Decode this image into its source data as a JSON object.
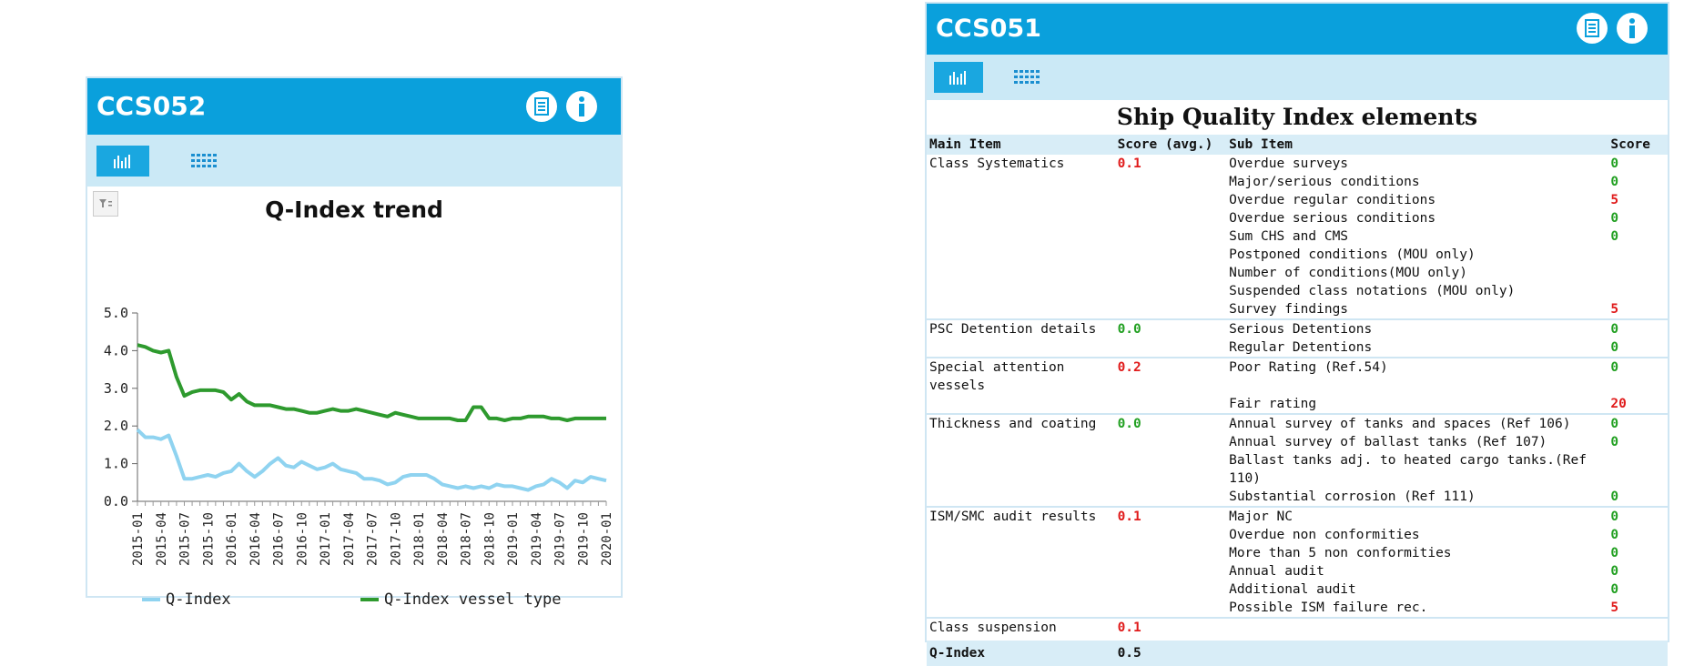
{
  "left_panel": {
    "title": "CCS052",
    "chart_title": "Q-Index trend",
    "toolbar": {
      "chart_icon": "bar-chart-icon",
      "table_icon": "grid-icon",
      "filter_icon": "filter-icon"
    },
    "header_icons": [
      "document-icon",
      "info-icon"
    ]
  },
  "chart_data": {
    "type": "line",
    "title": "Q-Index trend",
    "xlabel": "",
    "ylabel": "",
    "ylim": [
      0,
      5
    ],
    "yticks": [
      "0.0",
      "1.0",
      "2.0",
      "3.0",
      "4.0",
      "5.0"
    ],
    "x_tick_labels": [
      "2015-01",
      "2015-04",
      "2015-07",
      "2015-10",
      "2016-01",
      "2016-04",
      "2016-07",
      "2016-10",
      "2017-01",
      "2017-04",
      "2017-07",
      "2017-10",
      "2018-01",
      "2018-04",
      "2018-07",
      "2018-10",
      "2019-01",
      "2019-04",
      "2019-07",
      "2019-10",
      "2020-01"
    ],
    "legend_position": "bottom",
    "series": [
      {
        "name": "Q-Index",
        "color": "#8fd3f0",
        "values": [
          1.9,
          1.7,
          1.7,
          1.65,
          1.75,
          1.2,
          0.6,
          0.6,
          0.65,
          0.7,
          0.65,
          0.75,
          0.8,
          1.0,
          0.8,
          0.65,
          0.8,
          1.0,
          1.15,
          0.95,
          0.9,
          1.05,
          0.95,
          0.85,
          0.9,
          1.0,
          0.85,
          0.8,
          0.75,
          0.6,
          0.6,
          0.55,
          0.45,
          0.5,
          0.65,
          0.7,
          0.7,
          0.7,
          0.6,
          0.45,
          0.4,
          0.35,
          0.4,
          0.35,
          0.4,
          0.35,
          0.45,
          0.4,
          0.4,
          0.35,
          0.3,
          0.4,
          0.45,
          0.6,
          0.5,
          0.35,
          0.55,
          0.5,
          0.65,
          0.6,
          0.55
        ]
      },
      {
        "name": "Q-Index vessel type",
        "color": "#2e9a2e",
        "values": [
          4.15,
          4.1,
          4.0,
          3.95,
          4.0,
          3.3,
          2.8,
          2.9,
          2.95,
          2.95,
          2.95,
          2.9,
          2.7,
          2.85,
          2.65,
          2.55,
          2.55,
          2.55,
          2.5,
          2.45,
          2.45,
          2.4,
          2.35,
          2.35,
          2.4,
          2.45,
          2.4,
          2.4,
          2.45,
          2.4,
          2.35,
          2.3,
          2.25,
          2.35,
          2.3,
          2.25,
          2.2,
          2.2,
          2.2,
          2.2,
          2.2,
          2.15,
          2.15,
          2.5,
          2.5,
          2.2,
          2.2,
          2.15,
          2.2,
          2.2,
          2.25,
          2.25,
          2.25,
          2.2,
          2.2,
          2.15,
          2.2,
          2.2,
          2.2,
          2.2,
          2.2
        ]
      }
    ]
  },
  "right_panel": {
    "title": "CCS051",
    "heading": "Ship Quality Index elements",
    "columns": [
      "Main Item",
      "Score (avg.)",
      "Sub Item",
      "Score"
    ],
    "groups": [
      {
        "main": "Class Systematics",
        "avg": "0.1",
        "avg_color": "red",
        "subs": [
          {
            "name": "Overdue surveys",
            "score": "0",
            "color": "green"
          },
          {
            "name": "Major/serious conditions",
            "score": "0",
            "color": "green"
          },
          {
            "name": "Overdue regular conditions",
            "score": "5",
            "color": "red"
          },
          {
            "name": "Overdue serious conditions",
            "score": "0",
            "color": "green"
          },
          {
            "name": "Sum CHS and CMS",
            "score": "0",
            "color": "green"
          },
          {
            "name": "Postponed conditions (MOU only)",
            "score": "",
            "color": "green"
          },
          {
            "name": "Number of conditions(MOU only)",
            "score": "",
            "color": "green"
          },
          {
            "name": "Suspended class notations (MOU only)",
            "score": "",
            "color": "green"
          },
          {
            "name": "Survey findings",
            "score": "5",
            "color": "red"
          }
        ]
      },
      {
        "main": "PSC Detention details",
        "avg": "0.0",
        "avg_color": "green",
        "subs": [
          {
            "name": "Serious Detentions",
            "score": "0",
            "color": "green"
          },
          {
            "name": "Regular Detentions",
            "score": "0",
            "color": "green"
          }
        ]
      },
      {
        "main": "Special attention vessels",
        "avg": "0.2",
        "avg_color": "red",
        "subs": [
          {
            "name": "Poor Rating (Ref.54)",
            "score": "0",
            "color": "green"
          },
          {
            "name": "Fair rating",
            "score": "20",
            "color": "red"
          }
        ]
      },
      {
        "main": "Thickness and coating",
        "avg": "0.0",
        "avg_color": "green",
        "subs": [
          {
            "name": "Annual survey of tanks and spaces (Ref 106)",
            "score": "0",
            "color": "green"
          },
          {
            "name": "Annual survey of ballast tanks (Ref 107)",
            "score": "0",
            "color": "green"
          },
          {
            "name": "Ballast tanks adj. to heated cargo tanks.(Ref 110)",
            "score": "",
            "color": "green"
          },
          {
            "name": "Substantial corrosion (Ref 111)",
            "score": "0",
            "color": "green"
          }
        ]
      },
      {
        "main": "ISM/SMC audit results",
        "avg": "0.1",
        "avg_color": "red",
        "subs": [
          {
            "name": "Major NC",
            "score": "0",
            "color": "green"
          },
          {
            "name": "Overdue non conformities",
            "score": "0",
            "color": "green"
          },
          {
            "name": "More than 5 non conformities",
            "score": "0",
            "color": "green"
          },
          {
            "name": "Annual audit",
            "score": "0",
            "color": "green"
          },
          {
            "name": "Additional audit",
            "score": "0",
            "color": "green"
          },
          {
            "name": "Possible ISM failure rec.",
            "score": "5",
            "color": "red"
          }
        ]
      },
      {
        "main": "Class suspension",
        "avg": "0.1",
        "avg_color": "red",
        "subs": [
          {
            "name": "",
            "score": "",
            "color": "green"
          }
        ]
      }
    ],
    "total": {
      "label": "Q-Index",
      "value": "0.5"
    }
  }
}
